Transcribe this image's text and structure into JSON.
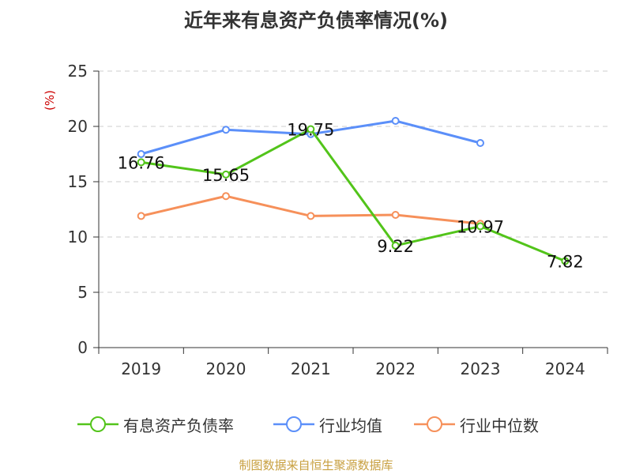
{
  "chart_data": {
    "type": "line",
    "title": "近年来有息资产负债率情况(%)",
    "ylabel": "(%)",
    "categories": [
      "2019",
      "2020",
      "2021",
      "2022",
      "2023",
      "2024"
    ],
    "ylim": [
      0,
      25
    ],
    "yticks": [
      0,
      5,
      10,
      15,
      20,
      25
    ],
    "grid": true,
    "legend_position": "bottom",
    "series": [
      {
        "name": "有息资产负债率",
        "color": "#52c41a",
        "values": [
          16.76,
          15.65,
          19.75,
          9.22,
          10.97,
          7.82
        ],
        "labels": [
          "16.76",
          "15.65",
          "19.75",
          "9.22",
          "10.97",
          "7.82"
        ]
      },
      {
        "name": "行业均值",
        "color": "#5b8ff9",
        "values": [
          17.5,
          19.7,
          19.3,
          20.5,
          18.5,
          null
        ]
      },
      {
        "name": "行业中位数",
        "color": "#f6905a",
        "values": [
          11.9,
          13.7,
          11.9,
          12.0,
          11.2,
          null
        ]
      }
    ]
  },
  "source_note": "制图数据来自恒生聚源数据库"
}
